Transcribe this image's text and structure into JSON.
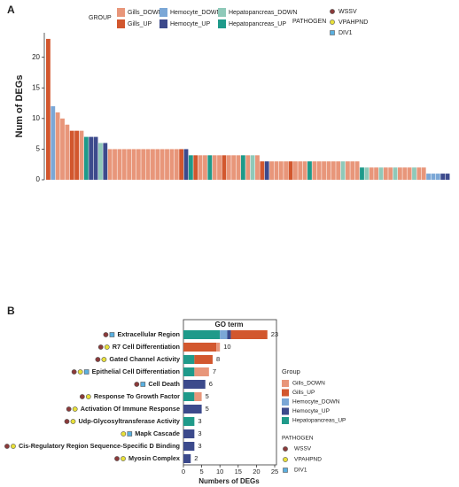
{
  "chart_data": [
    {
      "type": "bar",
      "panel": "A",
      "ylabel": "Num of DEGs",
      "ylim": [
        0,
        24
      ],
      "yticks": [
        0,
        5,
        10,
        15,
        20
      ],
      "legend": {
        "title": "GROUP",
        "items": [
          {
            "name": "Gills_DOWN",
            "color": "#e8967a"
          },
          {
            "name": "Gills_UP",
            "color": "#d2572e"
          },
          {
            "name": "Hemocyte_DOWN",
            "color": "#7ba7d6"
          },
          {
            "name": "Hemocyte_UP",
            "color": "#3c4a8c"
          },
          {
            "name": "Hepatopancreas_DOWN",
            "color": "#8fc9b9"
          },
          {
            "name": "Hepatopancreas_UP",
            "color": "#1f9a8a"
          }
        ]
      },
      "pathogen_legend": {
        "title": "PATHOGEN",
        "items": [
          {
            "name": "WSSV",
            "color": "#8b3a3a"
          },
          {
            "name": "VPAHPND",
            "color": "#e8e03a"
          },
          {
            "name": "DIV1",
            "color": "#5ab0e0"
          }
        ]
      },
      "values": [
        23,
        12,
        11,
        10,
        9,
        8,
        8,
        8,
        7,
        7,
        7,
        6,
        6,
        5,
        5,
        5,
        5,
        5,
        5,
        5,
        5,
        5,
        5,
        5,
        5,
        5,
        5,
        5,
        5,
        5,
        4,
        4,
        4,
        4,
        4,
        4,
        4,
        4,
        4,
        4,
        4,
        4,
        4,
        4,
        4,
        3,
        3,
        3,
        3,
        3,
        3,
        3,
        3,
        3,
        3,
        3,
        3,
        3,
        3,
        3,
        3,
        3,
        3,
        3,
        3,
        3,
        2,
        2,
        2,
        2,
        2,
        2,
        2,
        2,
        2,
        2,
        2,
        2,
        2,
        2,
        1,
        1,
        1,
        1,
        1
      ],
      "bar_groups": [
        "Gills_UP",
        "Hemocyte_DOWN",
        "Gills_DOWN",
        "Gills_DOWN",
        "Gills_DOWN",
        "Gills_UP",
        "Gills_UP",
        "Gills_DOWN",
        "Hepatopancreas_UP",
        "Hemocyte_UP",
        "Hemocyte_UP",
        "Hepatopancreas_DOWN",
        "Hemocyte_UP",
        "Gills_DOWN",
        "Gills_DOWN",
        "Gills_DOWN",
        "Gills_DOWN",
        "Gills_DOWN",
        "Gills_DOWN",
        "Gills_DOWN",
        "Gills_DOWN",
        "Gills_DOWN",
        "Gills_DOWN",
        "Gills_DOWN",
        "Gills_DOWN",
        "Gills_DOWN",
        "Gills_DOWN",
        "Gills_DOWN",
        "Gills_UP",
        "Hemocyte_UP",
        "Hepatopancreas_UP",
        "Gills_UP",
        "Gills_DOWN",
        "Gills_DOWN",
        "Hepatopancreas_UP",
        "Gills_DOWN",
        "Gills_DOWN",
        "Gills_UP",
        "Gills_DOWN",
        "Gills_DOWN",
        "Gills_DOWN",
        "Hepatopancreas_UP",
        "Gills_DOWN",
        "Hepatopancreas_DOWN",
        "Gills_DOWN",
        "Gills_UP",
        "Hemocyte_UP",
        "Gills_DOWN",
        "Gills_DOWN",
        "Gills_DOWN",
        "Gills_DOWN",
        "Gills_UP",
        "Gills_DOWN",
        "Gills_DOWN",
        "Gills_DOWN",
        "Hepatopancreas_UP",
        "Gills_DOWN",
        "Gills_DOWN",
        "Gills_DOWN",
        "Gills_DOWN",
        "Gills_DOWN",
        "Gills_DOWN",
        "Hepatopancreas_DOWN",
        "Gills_DOWN",
        "Gills_DOWN",
        "Gills_DOWN",
        "Hepatopancreas_UP",
        "Hepatopancreas_DOWN",
        "Gills_DOWN",
        "Gills_DOWN",
        "Hepatopancreas_DOWN",
        "Gills_DOWN",
        "Gills_DOWN",
        "Hepatopancreas_DOWN",
        "Gills_DOWN",
        "Gills_DOWN",
        "Gills_DOWN",
        "Hepatopancreas_DOWN",
        "Gills_DOWN",
        "Gills_DOWN",
        "Hemocyte_DOWN",
        "Hemocyte_DOWN",
        "Hemocyte_DOWN",
        "Hemocyte_UP",
        "Hemocyte_UP"
      ]
    },
    {
      "type": "hbar",
      "panel": "B",
      "title": "GO term",
      "xlabel": "Numbers of DEGs",
      "xlim": [
        0,
        25
      ],
      "xticks": [
        0,
        5,
        10,
        15,
        20,
        25
      ],
      "categories": [
        "Extracellular Region",
        "R7 Cell Differentiation",
        "Gated Channel Activity",
        "Epithelial Cell Differentiation",
        "Cell Death",
        "Response To Growth Factor",
        "Activation Of Immune Response",
        "Udp-Glycosyltransferase Activity",
        "Mapk Cascade",
        "Cis-Regulatory Region Sequence-Specific D Binding",
        "Myosin Complex"
      ],
      "total_labels": [
        "23",
        "10",
        "8",
        "7",
        "6",
        "5",
        "5",
        "3",
        "3",
        "3",
        "2"
      ],
      "legend_title": "Group",
      "series": [
        {
          "name": "Hepatopancreas_UP",
          "color": "#1f9a8a",
          "values": [
            10,
            0,
            3,
            3,
            0,
            3,
            0,
            3,
            0,
            0,
            0
          ]
        },
        {
          "name": "Hemocyte_DOWN",
          "color": "#7ba7d6",
          "values": [
            2,
            0,
            0,
            0,
            0,
            0,
            0,
            0,
            0,
            0,
            0
          ]
        },
        {
          "name": "Hemocyte_UP",
          "color": "#3c4a8c",
          "values": [
            1,
            0,
            0,
            0,
            6,
            0,
            5,
            0,
            3,
            3,
            2
          ]
        },
        {
          "name": "Gills_UP",
          "color": "#d2572e",
          "values": [
            10,
            9,
            5,
            0,
            0,
            0,
            0,
            0,
            0,
            0,
            0
          ]
        },
        {
          "name": "Gills_DOWN",
          "color": "#e8967a",
          "values": [
            0,
            1,
            0,
            4,
            0,
            2,
            0,
            0,
            0,
            0,
            0
          ]
        }
      ],
      "legend_order": [
        "Gills_DOWN",
        "Gills_UP",
        "Hemocyte_DOWN",
        "Hemocyte_UP",
        "Hepatopancreas_UP"
      ],
      "pathogen_legend": {
        "title": "PATHOGEN",
        "items": [
          {
            "name": "WSSV",
            "color": "#8b3a3a"
          },
          {
            "name": "VPAHPND",
            "color": "#e8e03a"
          },
          {
            "name": "DIV1",
            "color": "#5ab0e0"
          }
        ]
      },
      "pathogens": [
        [
          "WSSV",
          "DIV1"
        ],
        [
          "WSSV",
          "VPAHPND"
        ],
        [
          "WSSV",
          "VPAHPND"
        ],
        [
          "WSSV",
          "VPAHPND",
          "DIV1"
        ],
        [
          "WSSV",
          "DIV1"
        ],
        [
          "WSSV",
          "VPAHPND"
        ],
        [
          "WSSV",
          "VPAHPND"
        ],
        [
          "WSSV",
          "VPAHPND"
        ],
        [
          "VPAHPND",
          "DIV1"
        ],
        [
          "WSSV",
          "VPAHPND"
        ],
        [
          "WSSV",
          "VPAHPND"
        ]
      ]
    }
  ]
}
